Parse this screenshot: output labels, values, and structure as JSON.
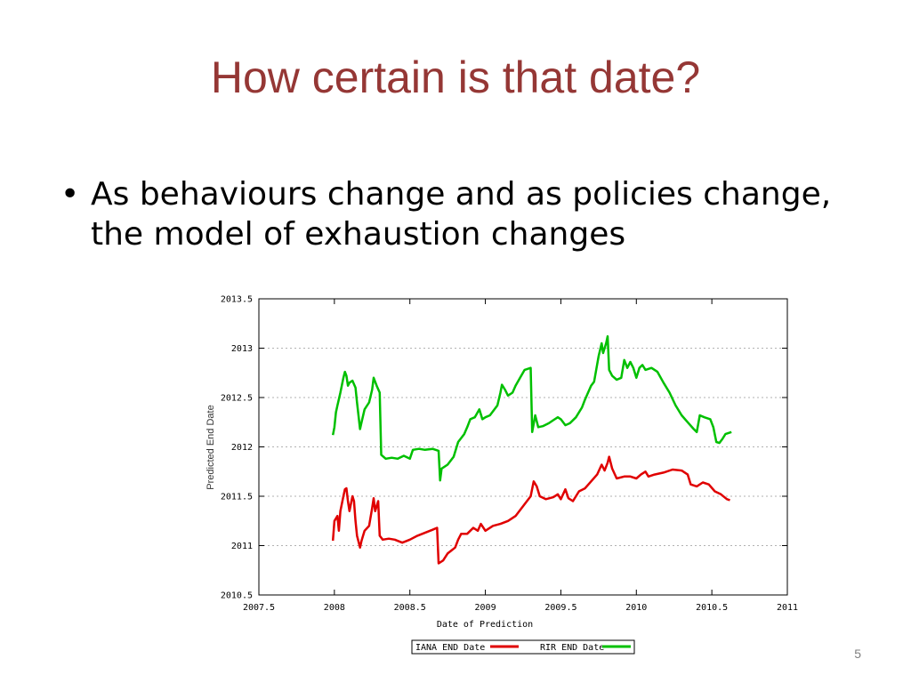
{
  "slide": {
    "title": "How certain is that date?",
    "bullets": [
      {
        "marker": "•",
        "text": "As behaviours change and as policies change, the model of exhaustion changes"
      }
    ],
    "page_number": "5"
  },
  "chart_data": {
    "type": "line",
    "title": "",
    "xlabel": "Date of Prediction",
    "ylabel": "Predicted End Date",
    "xlim": [
      2007.5,
      2011
    ],
    "ylim": [
      2010.5,
      2013.5
    ],
    "xticks": [
      2007.5,
      2008,
      2008.5,
      2009,
      2009.5,
      2010,
      2010.5,
      2011
    ],
    "yticks": [
      2010.5,
      2011,
      2011.5,
      2012,
      2012.5,
      2013,
      2013.5
    ],
    "xtick_labels": [
      "2007.5",
      "2008",
      "2008.5",
      "2009",
      "2009.5",
      "2010",
      "2010.5",
      "2011"
    ],
    "ytick_labels": [
      "2010.5",
      "2011",
      "2011.5",
      "2012",
      "2012.5",
      "2013",
      "2013.5"
    ],
    "grid": true,
    "legend_position": "bottom-center",
    "series": [
      {
        "name": "IANA END Date",
        "color": "#e00000",
        "points": [
          [
            2007.99,
            2011.05
          ],
          [
            2008.0,
            2011.25
          ],
          [
            2008.02,
            2011.3
          ],
          [
            2008.03,
            2011.15
          ],
          [
            2008.04,
            2011.35
          ],
          [
            2008.06,
            2011.5
          ],
          [
            2008.07,
            2011.57
          ],
          [
            2008.08,
            2011.58
          ],
          [
            2008.09,
            2011.45
          ],
          [
            2008.1,
            2011.35
          ],
          [
            2008.12,
            2011.5
          ],
          [
            2008.13,
            2011.45
          ],
          [
            2008.14,
            2011.25
          ],
          [
            2008.15,
            2011.1
          ],
          [
            2008.17,
            2010.98
          ],
          [
            2008.18,
            2011.05
          ],
          [
            2008.2,
            2011.15
          ],
          [
            2008.23,
            2011.2
          ],
          [
            2008.25,
            2011.38
          ],
          [
            2008.26,
            2011.48
          ],
          [
            2008.27,
            2011.35
          ],
          [
            2008.29,
            2011.45
          ],
          [
            2008.3,
            2011.1
          ],
          [
            2008.32,
            2011.06
          ],
          [
            2008.36,
            2011.07
          ],
          [
            2008.4,
            2011.06
          ],
          [
            2008.45,
            2011.03
          ],
          [
            2008.5,
            2011.06
          ],
          [
            2008.55,
            2011.1
          ],
          [
            2008.6,
            2011.13
          ],
          [
            2008.65,
            2011.16
          ],
          [
            2008.68,
            2011.18
          ],
          [
            2008.69,
            2010.82
          ],
          [
            2008.72,
            2010.85
          ],
          [
            2008.75,
            2010.92
          ],
          [
            2008.8,
            2010.98
          ],
          [
            2008.82,
            2011.06
          ],
          [
            2008.84,
            2011.12
          ],
          [
            2008.88,
            2011.12
          ],
          [
            2008.92,
            2011.18
          ],
          [
            2008.95,
            2011.15
          ],
          [
            2008.97,
            2011.22
          ],
          [
            2009.0,
            2011.15
          ],
          [
            2009.05,
            2011.2
          ],
          [
            2009.1,
            2011.22
          ],
          [
            2009.15,
            2011.25
          ],
          [
            2009.2,
            2011.3
          ],
          [
            2009.25,
            2011.4
          ],
          [
            2009.3,
            2011.5
          ],
          [
            2009.32,
            2011.65
          ],
          [
            2009.34,
            2011.6
          ],
          [
            2009.36,
            2011.5
          ],
          [
            2009.4,
            2011.47
          ],
          [
            2009.45,
            2011.49
          ],
          [
            2009.48,
            2011.52
          ],
          [
            2009.5,
            2011.47
          ],
          [
            2009.53,
            2011.57
          ],
          [
            2009.55,
            2011.48
          ],
          [
            2009.58,
            2011.45
          ],
          [
            2009.62,
            2011.55
          ],
          [
            2009.66,
            2011.58
          ],
          [
            2009.7,
            2011.65
          ],
          [
            2009.74,
            2011.72
          ],
          [
            2009.77,
            2011.82
          ],
          [
            2009.79,
            2011.76
          ],
          [
            2009.81,
            2011.84
          ],
          [
            2009.82,
            2011.9
          ],
          [
            2009.84,
            2011.78
          ],
          [
            2009.87,
            2011.68
          ],
          [
            2009.92,
            2011.7
          ],
          [
            2009.96,
            2011.7
          ],
          [
            2010.0,
            2011.68
          ],
          [
            2010.03,
            2011.72
          ],
          [
            2010.06,
            2011.75
          ],
          [
            2010.08,
            2011.7
          ],
          [
            2010.12,
            2011.72
          ],
          [
            2010.18,
            2011.74
          ],
          [
            2010.24,
            2011.77
          ],
          [
            2010.3,
            2011.76
          ],
          [
            2010.34,
            2011.72
          ],
          [
            2010.36,
            2011.62
          ],
          [
            2010.4,
            2011.6
          ],
          [
            2010.44,
            2011.64
          ],
          [
            2010.48,
            2011.62
          ],
          [
            2010.52,
            2011.55
          ],
          [
            2010.56,
            2011.52
          ],
          [
            2010.6,
            2011.47
          ],
          [
            2010.62,
            2011.46
          ]
        ]
      },
      {
        "name": "RIR END Date",
        "color": "#00c000",
        "points": [
          [
            2007.99,
            2012.12
          ],
          [
            2008.0,
            2012.2
          ],
          [
            2008.01,
            2012.35
          ],
          [
            2008.02,
            2012.42
          ],
          [
            2008.04,
            2012.55
          ],
          [
            2008.06,
            2012.7
          ],
          [
            2008.07,
            2012.76
          ],
          [
            2008.08,
            2012.72
          ],
          [
            2008.09,
            2012.62
          ],
          [
            2008.1,
            2012.65
          ],
          [
            2008.12,
            2012.67
          ],
          [
            2008.14,
            2012.6
          ],
          [
            2008.15,
            2012.45
          ],
          [
            2008.17,
            2012.18
          ],
          [
            2008.18,
            2012.25
          ],
          [
            2008.2,
            2012.38
          ],
          [
            2008.23,
            2012.45
          ],
          [
            2008.25,
            2012.58
          ],
          [
            2008.26,
            2012.7
          ],
          [
            2008.28,
            2012.62
          ],
          [
            2008.3,
            2012.55
          ],
          [
            2008.31,
            2011.92
          ],
          [
            2008.34,
            2011.88
          ],
          [
            2008.38,
            2011.89
          ],
          [
            2008.42,
            2011.88
          ],
          [
            2008.46,
            2011.91
          ],
          [
            2008.5,
            2011.88
          ],
          [
            2008.52,
            2011.97
          ],
          [
            2008.56,
            2011.98
          ],
          [
            2008.6,
            2011.97
          ],
          [
            2008.65,
            2011.98
          ],
          [
            2008.69,
            2011.96
          ],
          [
            2008.7,
            2011.66
          ],
          [
            2008.71,
            2011.78
          ],
          [
            2008.75,
            2011.82
          ],
          [
            2008.79,
            2011.9
          ],
          [
            2008.82,
            2012.05
          ],
          [
            2008.86,
            2012.13
          ],
          [
            2008.88,
            2012.2
          ],
          [
            2008.9,
            2012.28
          ],
          [
            2008.93,
            2012.3
          ],
          [
            2008.96,
            2012.38
          ],
          [
            2008.98,
            2012.28
          ],
          [
            2009.0,
            2012.3
          ],
          [
            2009.03,
            2012.32
          ],
          [
            2009.06,
            2012.38
          ],
          [
            2009.08,
            2012.42
          ],
          [
            2009.1,
            2012.55
          ],
          [
            2009.11,
            2012.63
          ],
          [
            2009.13,
            2012.58
          ],
          [
            2009.15,
            2012.52
          ],
          [
            2009.18,
            2012.55
          ],
          [
            2009.2,
            2012.62
          ],
          [
            2009.23,
            2012.7
          ],
          [
            2009.26,
            2012.78
          ],
          [
            2009.3,
            2012.8
          ],
          [
            2009.31,
            2012.15
          ],
          [
            2009.33,
            2012.32
          ],
          [
            2009.35,
            2012.2
          ],
          [
            2009.38,
            2012.21
          ],
          [
            2009.42,
            2012.24
          ],
          [
            2009.45,
            2012.27
          ],
          [
            2009.48,
            2012.3
          ],
          [
            2009.5,
            2012.28
          ],
          [
            2009.53,
            2012.22
          ],
          [
            2009.56,
            2012.24
          ],
          [
            2009.6,
            2012.3
          ],
          [
            2009.64,
            2012.4
          ],
          [
            2009.66,
            2012.48
          ],
          [
            2009.68,
            2012.55
          ],
          [
            2009.7,
            2012.62
          ],
          [
            2009.72,
            2012.66
          ],
          [
            2009.75,
            2012.92
          ],
          [
            2009.77,
            2013.05
          ],
          [
            2009.78,
            2012.95
          ],
          [
            2009.8,
            2013.05
          ],
          [
            2009.81,
            2013.12
          ],
          [
            2009.82,
            2012.78
          ],
          [
            2009.84,
            2012.72
          ],
          [
            2009.87,
            2012.68
          ],
          [
            2009.9,
            2012.7
          ],
          [
            2009.92,
            2012.88
          ],
          [
            2009.94,
            2012.8
          ],
          [
            2009.96,
            2012.86
          ],
          [
            2009.98,
            2012.8
          ],
          [
            2010.0,
            2012.7
          ],
          [
            2010.02,
            2012.8
          ],
          [
            2010.04,
            2012.83
          ],
          [
            2010.06,
            2012.78
          ],
          [
            2010.1,
            2012.8
          ],
          [
            2010.14,
            2012.76
          ],
          [
            2010.18,
            2012.65
          ],
          [
            2010.22,
            2012.55
          ],
          [
            2010.26,
            2012.42
          ],
          [
            2010.3,
            2012.32
          ],
          [
            2010.34,
            2012.25
          ],
          [
            2010.38,
            2012.18
          ],
          [
            2010.4,
            2012.15
          ],
          [
            2010.42,
            2012.32
          ],
          [
            2010.45,
            2012.3
          ],
          [
            2010.49,
            2012.28
          ],
          [
            2010.51,
            2012.2
          ],
          [
            2010.53,
            2012.05
          ],
          [
            2010.55,
            2012.04
          ],
          [
            2010.57,
            2012.08
          ],
          [
            2010.59,
            2012.13
          ],
          [
            2010.63,
            2012.15
          ]
        ]
      }
    ]
  }
}
